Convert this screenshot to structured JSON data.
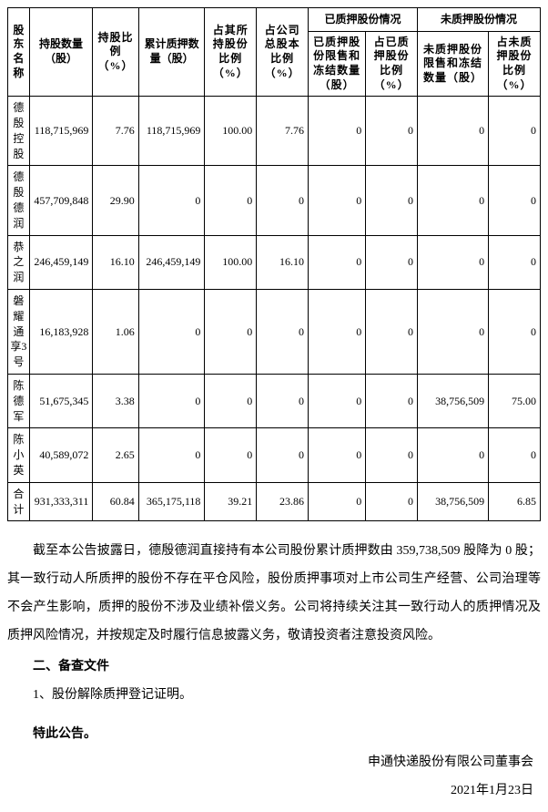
{
  "table": {
    "headers": {
      "name": "股东名称",
      "holding_qty": "持股数量（股）",
      "holding_ratio": "持股比例（%）",
      "cum_pledged_qty": "累计质押数量（股）",
      "pct_self": "占其所持股份比例（%）",
      "pct_total": "占公司总股本比例（%）",
      "pledged_group": "已质押股份情况",
      "unpledged_group": "未质押股份情况",
      "pledged_restrict_qty": "已质押股份限售和冻结数量（股）",
      "pledged_restrict_ratio": "占已质押股份比例（%）",
      "unpledged_restrict_qty": "未质押股份限售和冻结数量（股）",
      "unpledged_restrict_ratio": "占未质押股份比例（%）"
    },
    "rows": [
      {
        "name": "德殷控股",
        "hold_qty": "118,715,969",
        "hold_ratio": "7.76",
        "cum_pledged": "118,715,969",
        "pct_self": "100.00",
        "pct_total": "7.76",
        "p_qty": "0",
        "p_ratio": "0",
        "u_qty": "0",
        "u_ratio": "0"
      },
      {
        "name": "德殷德润",
        "hold_qty": "457,709,848",
        "hold_ratio": "29.90",
        "cum_pledged": "0",
        "pct_self": "0",
        "pct_total": "0",
        "p_qty": "0",
        "p_ratio": "0",
        "u_qty": "0",
        "u_ratio": "0"
      },
      {
        "name": "恭之润",
        "hold_qty": "246,459,149",
        "hold_ratio": "16.10",
        "cum_pledged": "246,459,149",
        "pct_self": "100.00",
        "pct_total": "16.10",
        "p_qty": "0",
        "p_ratio": "0",
        "u_qty": "0",
        "u_ratio": "0"
      },
      {
        "name": "磐耀通享3号",
        "hold_qty": "16,183,928",
        "hold_ratio": "1.06",
        "cum_pledged": "0",
        "pct_self": "0",
        "pct_total": "0",
        "p_qty": "0",
        "p_ratio": "0",
        "u_qty": "0",
        "u_ratio": "0"
      },
      {
        "name": "陈德军",
        "hold_qty": "51,675,345",
        "hold_ratio": "3.38",
        "cum_pledged": "0",
        "pct_self": "0",
        "pct_total": "0",
        "p_qty": "0",
        "p_ratio": "0",
        "u_qty": "38,756,509",
        "u_ratio": "75.00"
      },
      {
        "name": "陈小英",
        "hold_qty": "40,589,072",
        "hold_ratio": "2.65",
        "cum_pledged": "0",
        "pct_self": "0",
        "pct_total": "0",
        "p_qty": "0",
        "p_ratio": "0",
        "u_qty": "0",
        "u_ratio": "0"
      }
    ],
    "total": {
      "name": "合计",
      "hold_qty": "931,333,311",
      "hold_ratio": "60.84",
      "cum_pledged": "365,175,118",
      "pct_self": "39.21",
      "pct_total": "23.86",
      "p_qty": "0",
      "p_ratio": "0",
      "u_qty": "38,756,509",
      "u_ratio": "6.85"
    }
  },
  "paragraph1": "截至本公告披露日，德殷德润直接持有本公司股份累计质押数由 359,738,509 股降为 0 股；其一致行动人所质押的股份不存在平仓风险，股份质押事项对上市公司生产经营、公司治理等不会产生影响，质押的股份不涉及业绩补偿义务。公司将持续关注其一致行动人的质押情况及质押风险情况，并按规定及时履行信息披露义务，敬请投资者注意投资风险。",
  "section2_title": "二、备查文件",
  "section2_item1": "1、股份解除质押登记证明。",
  "notice": "特此公告。",
  "signature_org": "申通快递股份有限公司董事会",
  "signature_date": "2021年1月23日"
}
